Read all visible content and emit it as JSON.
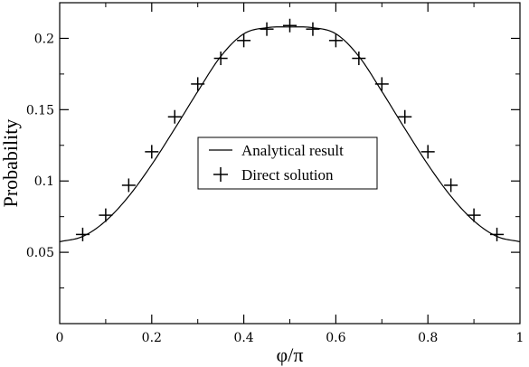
{
  "chart_data": {
    "type": "line",
    "xlabel": "φ/π",
    "ylabel": "Probability",
    "xlim": [
      0,
      1
    ],
    "ylim": [
      0,
      0.225
    ],
    "x_ticks": [
      "0",
      "0.2",
      "0.4",
      "0.6",
      "0.8",
      "1"
    ],
    "y_ticks": [
      "0.05",
      "0.1",
      "0.15",
      "0.2"
    ],
    "grid": false,
    "legend_position": "center",
    "series": [
      {
        "name": "Analytical result",
        "style": "solid line",
        "color": "#000000",
        "x": [
          0.0,
          0.05,
          0.1,
          0.15,
          0.2,
          0.25,
          0.3,
          0.35,
          0.4,
          0.45,
          0.5,
          0.55,
          0.6,
          0.65,
          0.7,
          0.75,
          0.8,
          0.85,
          0.9,
          0.95,
          1.0
        ],
        "y": [
          0.0574,
          0.0611,
          0.072,
          0.0893,
          0.1115,
          0.1367,
          0.1628,
          0.1874,
          0.2032,
          0.2075,
          0.208,
          0.2075,
          0.2032,
          0.1874,
          0.1628,
          0.1367,
          0.1115,
          0.0893,
          0.072,
          0.0611,
          0.0574
        ]
      },
      {
        "name": "Direct solution",
        "style": "plus markers",
        "color": "#000000",
        "x": [
          0.05,
          0.1,
          0.15,
          0.2,
          0.25,
          0.3,
          0.35,
          0.4,
          0.45,
          0.5,
          0.55,
          0.6,
          0.65,
          0.7,
          0.75,
          0.8,
          0.85,
          0.9,
          0.95
        ],
        "y": [
          0.0625,
          0.076,
          0.097,
          0.1205,
          0.145,
          0.168,
          0.186,
          0.1985,
          0.2065,
          0.209,
          0.2065,
          0.1985,
          0.186,
          0.168,
          0.145,
          0.1205,
          0.097,
          0.076,
          0.0625
        ]
      }
    ]
  }
}
